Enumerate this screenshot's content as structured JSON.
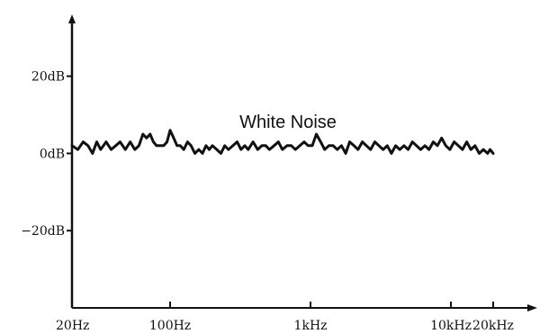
{
  "chart_data": {
    "type": "line",
    "title": "White Noise",
    "xlabel": "",
    "ylabel": "",
    "x_scale": "log",
    "xlim": [
      20,
      20000
    ],
    "ylim": [
      -40,
      36
    ],
    "x_ticks": [
      {
        "value": 20,
        "label": "20Hz"
      },
      {
        "value": 100,
        "label": "100Hz"
      },
      {
        "value": 1000,
        "label": "1kHz"
      },
      {
        "value": 10000,
        "label": "10kHz"
      },
      {
        "value": 20000,
        "label": "20kHz"
      }
    ],
    "y_ticks": [
      {
        "value": 20,
        "label": "20dB"
      },
      {
        "value": 0,
        "label": "0dB"
      },
      {
        "value": -20,
        "label": "−20dB"
      }
    ],
    "grid": false,
    "legend": "none",
    "line_color": "#111111",
    "series": [
      {
        "x": [
          20,
          22,
          24,
          26,
          28,
          30,
          32,
          35,
          38,
          41,
          44,
          48,
          52,
          56,
          60,
          64,
          68,
          72,
          76,
          80,
          85,
          90,
          95,
          100,
          106,
          112,
          118,
          125,
          133,
          141,
          150,
          160,
          170,
          180,
          190,
          200,
          215,
          230,
          245,
          260,
          280,
          300,
          320,
          340,
          360,
          390,
          420,
          450,
          480,
          510,
          550,
          590,
          630,
          680,
          730,
          780,
          840,
          900,
          960,
          1030,
          1100,
          1180,
          1260,
          1350,
          1450,
          1550,
          1660,
          1780,
          1900,
          2040,
          2180,
          2340,
          2500,
          2680,
          2870,
          3070,
          3290,
          3520,
          3770,
          4040,
          4320,
          4630,
          4960,
          5310,
          5690,
          6090,
          6520,
          6980,
          7480,
          8010,
          8580,
          9190,
          9840,
          10540,
          11290,
          12090,
          12950,
          13870,
          14850,
          15910,
          17040,
          18250,
          19000,
          20000
        ],
        "values": [
          2.0,
          1.0,
          3.0,
          2.0,
          0.0,
          3.0,
          1.0,
          3.0,
          1.0,
          2.0,
          3.0,
          1.0,
          3.0,
          1.0,
          2.0,
          5.0,
          4.0,
          5.0,
          3.0,
          2.0,
          2.0,
          2.0,
          3.0,
          6.0,
          4.0,
          2.0,
          2.0,
          1.0,
          3.0,
          2.0,
          0.0,
          1.0,
          0.0,
          2.0,
          1.0,
          2.0,
          1.0,
          0.0,
          2.0,
          1.0,
          2.0,
          3.0,
          1.0,
          2.0,
          1.0,
          3.0,
          1.0,
          2.0,
          2.0,
          1.0,
          2.0,
          3.0,
          1.0,
          2.0,
          2.0,
          1.0,
          2.0,
          3.0,
          2.0,
          2.0,
          5.0,
          3.0,
          1.0,
          2.0,
          2.0,
          1.0,
          2.0,
          0.0,
          3.0,
          2.0,
          1.0,
          3.0,
          2.0,
          1.0,
          3.0,
          2.0,
          1.0,
          2.0,
          0.0,
          2.0,
          1.0,
          2.0,
          1.0,
          3.0,
          2.0,
          1.0,
          2.0,
          1.0,
          3.0,
          2.0,
          4.0,
          2.0,
          1.0,
          3.0,
          2.0,
          1.0,
          3.0,
          1.0,
          2.0,
          0.0,
          1.0,
          0.0,
          1.0,
          0.0
        ]
      }
    ]
  }
}
